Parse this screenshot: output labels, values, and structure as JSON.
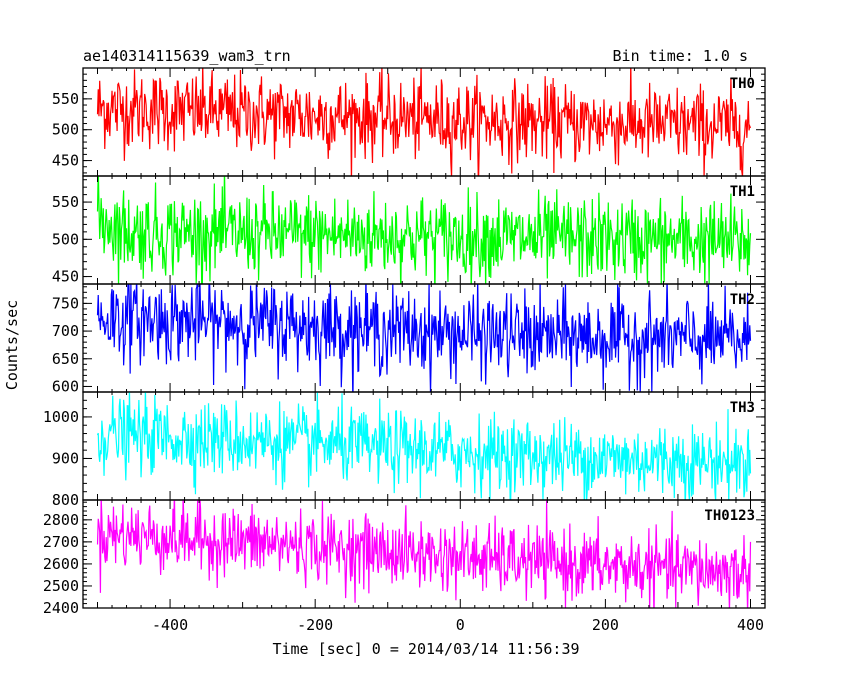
{
  "header": {
    "left": "ae140314115639_wam3_trn",
    "right": "Bin time: 1.0 s"
  },
  "chart_data": {
    "type": "line",
    "title": "ae140314115639_wam3_trn",
    "subtitle": "Bin time: 1.0 s",
    "xlabel": "Time [sec] 0 = 2014/03/14 11:56:39",
    "ylabel": "Counts/sec",
    "xlim": [
      -520,
      420
    ],
    "x_ticks": [
      -400,
      -200,
      0,
      200,
      400
    ],
    "x_range_data": [
      -500,
      400
    ],
    "bin_time": 1.0,
    "grid": false,
    "panels": [
      {
        "name": "TH0",
        "color": "#ff0000",
        "ylim": [
          425,
          600
        ],
        "y_ticks": [
          450,
          500,
          550
        ],
        "trend": [
          {
            "x": -500,
            "y": 535
          },
          {
            "x": -250,
            "y": 525
          },
          {
            "x": 0,
            "y": 515
          },
          {
            "x": 200,
            "y": 510
          },
          {
            "x": 400,
            "y": 505
          }
        ],
        "noise": 32
      },
      {
        "name": "TH1",
        "color": "#00ff00",
        "ylim": [
          440,
          585
        ],
        "y_ticks": [
          450,
          500,
          550
        ],
        "trend": [
          {
            "x": -500,
            "y": 530
          },
          {
            "x": -460,
            "y": 510
          },
          {
            "x": -250,
            "y": 507
          },
          {
            "x": 0,
            "y": 503
          },
          {
            "x": 200,
            "y": 500
          },
          {
            "x": 400,
            "y": 497
          }
        ],
        "noise": 28
      },
      {
        "name": "TH2",
        "color": "#0000ff",
        "ylim": [
          590,
          785
        ],
        "y_ticks": [
          600,
          650,
          700,
          750
        ],
        "trend": [
          {
            "x": -500,
            "y": 725
          },
          {
            "x": -250,
            "y": 712
          },
          {
            "x": 0,
            "y": 695
          },
          {
            "x": 200,
            "y": 688
          },
          {
            "x": 400,
            "y": 683
          }
        ],
        "noise": 38
      },
      {
        "name": "TH3",
        "color": "#00ffff",
        "ylim": [
          800,
          1060
        ],
        "y_ticks": [
          800,
          900,
          1000
        ],
        "trend": [
          {
            "x": -500,
            "y": 960
          },
          {
            "x": -250,
            "y": 940
          },
          {
            "x": 0,
            "y": 915
          },
          {
            "x": 200,
            "y": 900
          },
          {
            "x": 400,
            "y": 890
          }
        ],
        "noise": 45
      },
      {
        "name": "TH0123",
        "color": "#ff00ff",
        "ylim": [
          2400,
          2890
        ],
        "y_ticks": [
          2400,
          2500,
          2600,
          2700,
          2800
        ],
        "trend": [
          {
            "x": -500,
            "y": 2740
          },
          {
            "x": -250,
            "y": 2690
          },
          {
            "x": 0,
            "y": 2630
          },
          {
            "x": 200,
            "y": 2590
          },
          {
            "x": 400,
            "y": 2560
          }
        ],
        "noise": 80
      }
    ]
  }
}
